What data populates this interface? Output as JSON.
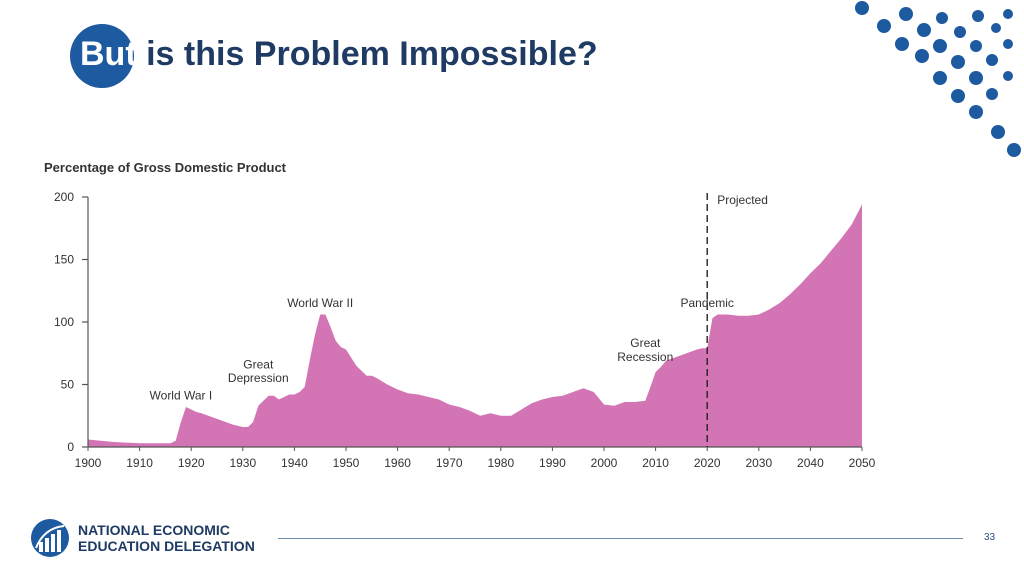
{
  "slide": {
    "title_first_word": "But",
    "title_rest": " is this Problem Impossible?",
    "page_number": "33",
    "accent_color": "#1d5aa0"
  },
  "logo": {
    "line1": "NATIONAL ECONOMIC",
    "line2": "EDUCATION DELEGATION",
    "icon": "need-logo-icon"
  },
  "chart_data": {
    "type": "area",
    "title": "Percentage of Gross Domestic Product",
    "xlabel": "",
    "ylabel": "",
    "xlim": [
      1900,
      2050
    ],
    "ylim": [
      0,
      200
    ],
    "x_ticks": [
      1900,
      1910,
      1920,
      1930,
      1940,
      1950,
      1960,
      1970,
      1980,
      1990,
      2000,
      2010,
      2020,
      2030,
      2040,
      2050
    ],
    "y_ticks": [
      0,
      50,
      100,
      150,
      200
    ],
    "grid": false,
    "fill_color": "#d374b5",
    "projection_start": 2020,
    "projection_label": "Projected",
    "x": [
      1900,
      1905,
      1910,
      1915,
      1916,
      1917,
      1918,
      1919,
      1920,
      1921,
      1922,
      1924,
      1926,
      1928,
      1930,
      1931,
      1932,
      1933,
      1934,
      1935,
      1936,
      1937,
      1938,
      1939,
      1940,
      1941,
      1942,
      1943,
      1944,
      1945,
      1946,
      1947,
      1948,
      1949,
      1950,
      1952,
      1954,
      1955,
      1956,
      1958,
      1960,
      1962,
      1964,
      1966,
      1968,
      1970,
      1972,
      1974,
      1976,
      1978,
      1980,
      1982,
      1984,
      1986,
      1988,
      1990,
      1992,
      1994,
      1996,
      1998,
      2000,
      2002,
      2004,
      2006,
      2008,
      2009,
      2010,
      2011,
      2012,
      2014,
      2016,
      2018,
      2019,
      2020,
      2021,
      2022,
      2024,
      2026,
      2028,
      2030,
      2032,
      2034,
      2036,
      2038,
      2040,
      2042,
      2044,
      2046,
      2048,
      2050
    ],
    "values": [
      6,
      4,
      3,
      3,
      3,
      5,
      20,
      32,
      30,
      28,
      27,
      24,
      21,
      18,
      16,
      16,
      20,
      33,
      37,
      41,
      41,
      38,
      40,
      42,
      42,
      44,
      48,
      70,
      90,
      106,
      106,
      96,
      85,
      80,
      78,
      65,
      57,
      57,
      55,
      50,
      46,
      43,
      42,
      40,
      38,
      34,
      32,
      29,
      25,
      27,
      25,
      25,
      30,
      35,
      38,
      40,
      41,
      44,
      47,
      44,
      34,
      33,
      36,
      36,
      37,
      48,
      60,
      64,
      69,
      72,
      75,
      78,
      79,
      79,
      103,
      106,
      106,
      105,
      105,
      106,
      110,
      115,
      122,
      130,
      139,
      147,
      157,
      167,
      178,
      194
    ],
    "annotations": [
      {
        "label": "World War I",
        "x": 1918,
        "y": 38
      },
      {
        "label": "Great",
        "x": 1933,
        "y": 63
      },
      {
        "label": "Depression",
        "x": 1933,
        "y": 52
      },
      {
        "label": "World War II",
        "x": 1945,
        "y": 112
      },
      {
        "label": "Great",
        "x": 2008,
        "y": 80
      },
      {
        "label": "Recession",
        "x": 2008,
        "y": 69
      },
      {
        "label": "Pandemic",
        "x": 2020,
        "y": 112
      }
    ]
  }
}
